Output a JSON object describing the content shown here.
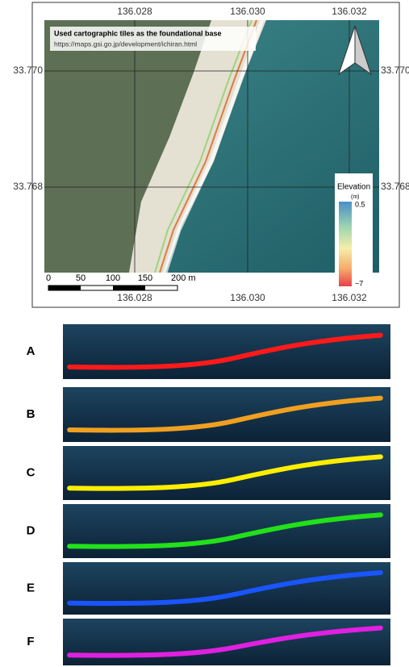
{
  "map": {
    "note": {
      "title": "Used cartographic tiles as the foundational base",
      "url": "https://maps.gsi.go.jp/development/ichiran.html"
    },
    "lon_labels": [
      "136.028",
      "136.030",
      "136.032"
    ],
    "lat_labels": [
      "33.770",
      "33.768"
    ],
    "scale_labels": [
      "0",
      "50",
      "100",
      "150",
      "200 m"
    ],
    "legend": {
      "title": "Elevation",
      "unit": "(m)",
      "max": "0.5",
      "min": "−7"
    }
  },
  "profiles": [
    {
      "label": "A",
      "color": "#ff1a1a"
    },
    {
      "label": "B",
      "color": "#f0a020"
    },
    {
      "label": "C",
      "color": "#ffee00"
    },
    {
      "label": "D",
      "color": "#22e01a"
    },
    {
      "label": "E",
      "color": "#1a55ff"
    },
    {
      "label": "F",
      "color": "#e020e0"
    }
  ]
}
